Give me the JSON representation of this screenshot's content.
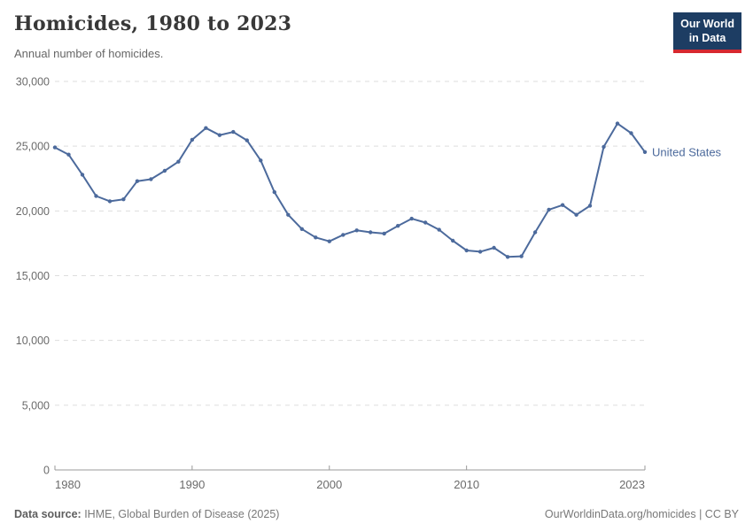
{
  "header": {
    "title": "Homicides, 1980 to 2023",
    "subtitle": "Annual number of homicides."
  },
  "logo": {
    "line1": "Our World",
    "line2": "in Data",
    "bg_color": "#1d3d63",
    "accent_color": "#d7282f"
  },
  "footer": {
    "source_label": "Data source:",
    "source_text": " IHME, Global Burden of Disease (2025)",
    "credit": "OurWorldinData.org/homicides | CC BY"
  },
  "colors": {
    "series_blue": "#4C6A9C",
    "gridline": "#dddddd",
    "axis": "#999999",
    "tick_label": "#6b6b6b",
    "title_text": "#383838"
  },
  "chart_data": {
    "type": "line",
    "title": "Homicides, 1980 to 2023",
    "subtitle": "Annual number of homicides.",
    "xlabel": "",
    "ylabel": "",
    "ylim": [
      0,
      30000
    ],
    "yticks": [
      0,
      5000,
      10000,
      15000,
      20000,
      25000,
      30000
    ],
    "ytick_labels": [
      "0",
      "5,000",
      "10,000",
      "15,000",
      "20,000",
      "25,000",
      "30,000"
    ],
    "xticks": [
      1980,
      1990,
      2000,
      2010,
      2023
    ],
    "xtick_labels": [
      "1980",
      "1990",
      "2000",
      "2010",
      "2023"
    ],
    "grid": "horizontal-dashed",
    "legend_position": "line-end-label",
    "series": [
      {
        "name": "United States",
        "color": "#4C6A9C",
        "x": [
          1980,
          1981,
          1982,
          1983,
          1984,
          1985,
          1986,
          1987,
          1988,
          1989,
          1990,
          1991,
          1992,
          1993,
          1994,
          1995,
          1996,
          1997,
          1998,
          1999,
          2000,
          2001,
          2002,
          2003,
          2004,
          2005,
          2006,
          2007,
          2008,
          2009,
          2010,
          2011,
          2012,
          2013,
          2014,
          2015,
          2016,
          2017,
          2018,
          2019,
          2020,
          2021,
          2022,
          2023
        ],
        "values": [
          24900,
          24350,
          22800,
          21150,
          20750,
          20900,
          22300,
          22450,
          23100,
          23800,
          25500,
          26400,
          25850,
          26100,
          25450,
          23900,
          21450,
          19700,
          18600,
          17950,
          17650,
          18150,
          18500,
          18350,
          18250,
          18850,
          19400,
          19100,
          18550,
          17700,
          16950,
          16850,
          17150,
          16450,
          16500,
          18350,
          20100,
          20450,
          19700,
          20400,
          24950,
          26750,
          26000,
          24550
        ]
      }
    ]
  }
}
